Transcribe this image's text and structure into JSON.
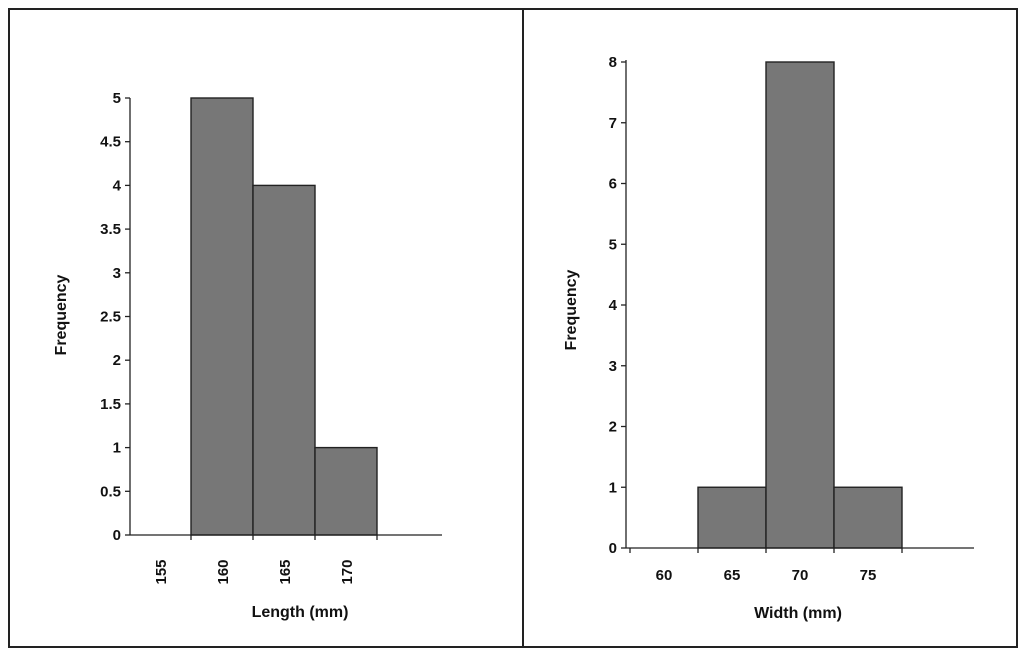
{
  "chart_data": [
    {
      "type": "bar",
      "categories": [
        "155",
        "160",
        "165",
        "170"
      ],
      "values": [
        0,
        5,
        4,
        1
      ],
      "xlabel": "Length (mm)",
      "ylabel": "Frequency",
      "ylim": [
        0,
        5
      ],
      "yticks": [
        "0",
        "0.5",
        "1",
        "1.5",
        "2",
        "2.5",
        "3",
        "3.5",
        "4",
        "4.5",
        "5"
      ],
      "grid": false,
      "bar_color": "#777777",
      "xtick_rotation": "vertical"
    },
    {
      "type": "bar",
      "categories": [
        "60",
        "65",
        "70",
        "75"
      ],
      "values": [
        0,
        1,
        8,
        1
      ],
      "xlabel": "Width (mm)",
      "ylabel": "Frequency",
      "ylim": [
        0,
        8
      ],
      "yticks": [
        "0",
        "1",
        "2",
        "3",
        "4",
        "5",
        "6",
        "7",
        "8"
      ],
      "grid": false,
      "bar_color": "#777777",
      "xtick_rotation": "horizontal"
    }
  ]
}
